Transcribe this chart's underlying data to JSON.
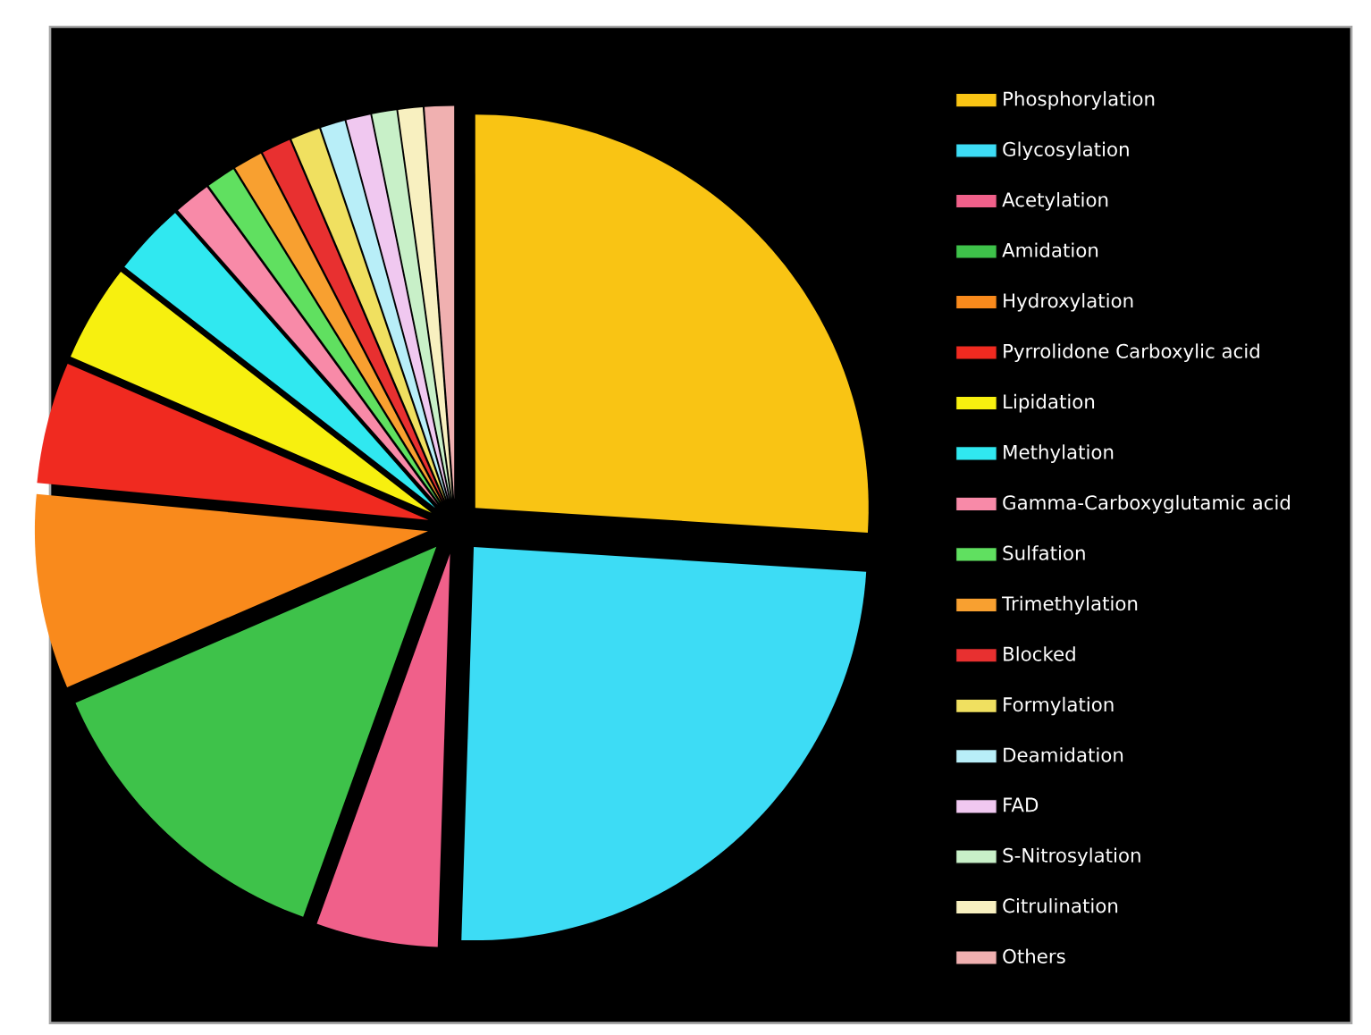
{
  "chart_data": {
    "type": "pie",
    "legend": "right",
    "categories": [
      "Phosphorylation",
      "Glycosylation",
      "Acetylation",
      "Amidation",
      "Hydroxylation",
      "Pyrrolidone Carboxylic acid",
      "Lipidation",
      "Methylation",
      "Gamma-Carboxyglutamic acid",
      "Sulfation",
      "Trimethylation",
      "Blocked",
      "Formylation",
      "Deamidation",
      "FAD",
      "S-Nitrosylation",
      "Citrulination",
      "Others"
    ],
    "values": [
      26,
      24.5,
      5,
      13,
      8,
      5,
      4,
      3,
      1.5,
      1.2,
      1.2,
      1.2,
      1.2,
      1,
      1,
      1,
      1,
      1.2
    ],
    "colors": [
      "#f9c414",
      "#3ddcf5",
      "#f0608a",
      "#3ec24a",
      "#f98a1c",
      "#f02a20",
      "#f7f00f",
      "#30e8f0",
      "#f88aa8",
      "#60e060",
      "#f8a030",
      "#e83030",
      "#f0e060",
      "#b8eef8",
      "#f0c8f0",
      "#c8f0c8",
      "#f8f0c0",
      "#f0b0b0"
    ]
  }
}
